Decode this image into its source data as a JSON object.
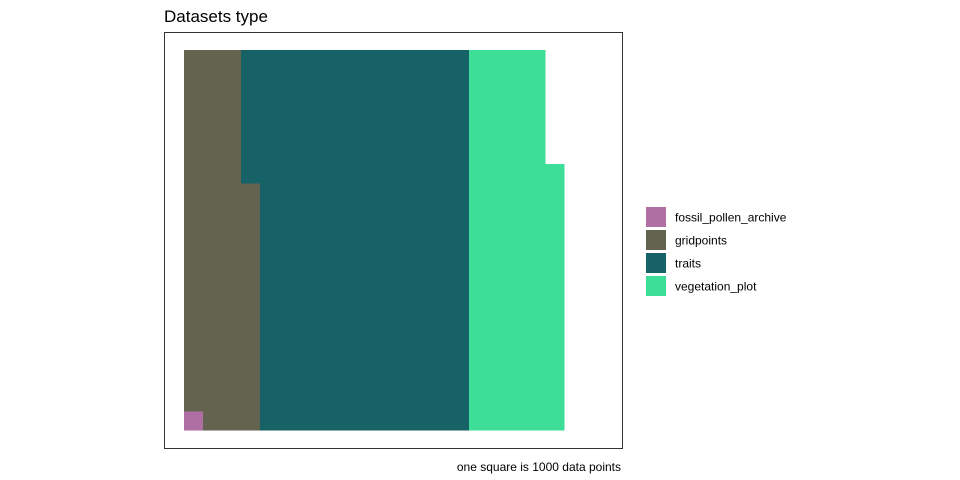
{
  "chart_data": {
    "type": "waffle",
    "title": "Datasets type",
    "caption": "one square is 1000 data points",
    "grid": {
      "rows": 20,
      "columns": 22
    },
    "units_per_square": 1000,
    "categories": [
      "fossil_pollen_archive",
      "gridpoints",
      "traits",
      "vegetation_plot"
    ],
    "series": [
      {
        "name": "fossil_pollen_archive",
        "squares": 1,
        "color": "#AF6FA3"
      },
      {
        "name": "gridpoints",
        "squares": 72,
        "color": "#636350"
      },
      {
        "name": "traits",
        "squares": 227,
        "color": "#176266"
      },
      {
        "name": "vegetation_plot",
        "squares": 94,
        "color": "#3EDE98"
      }
    ],
    "legend": {
      "position": "right"
    }
  }
}
